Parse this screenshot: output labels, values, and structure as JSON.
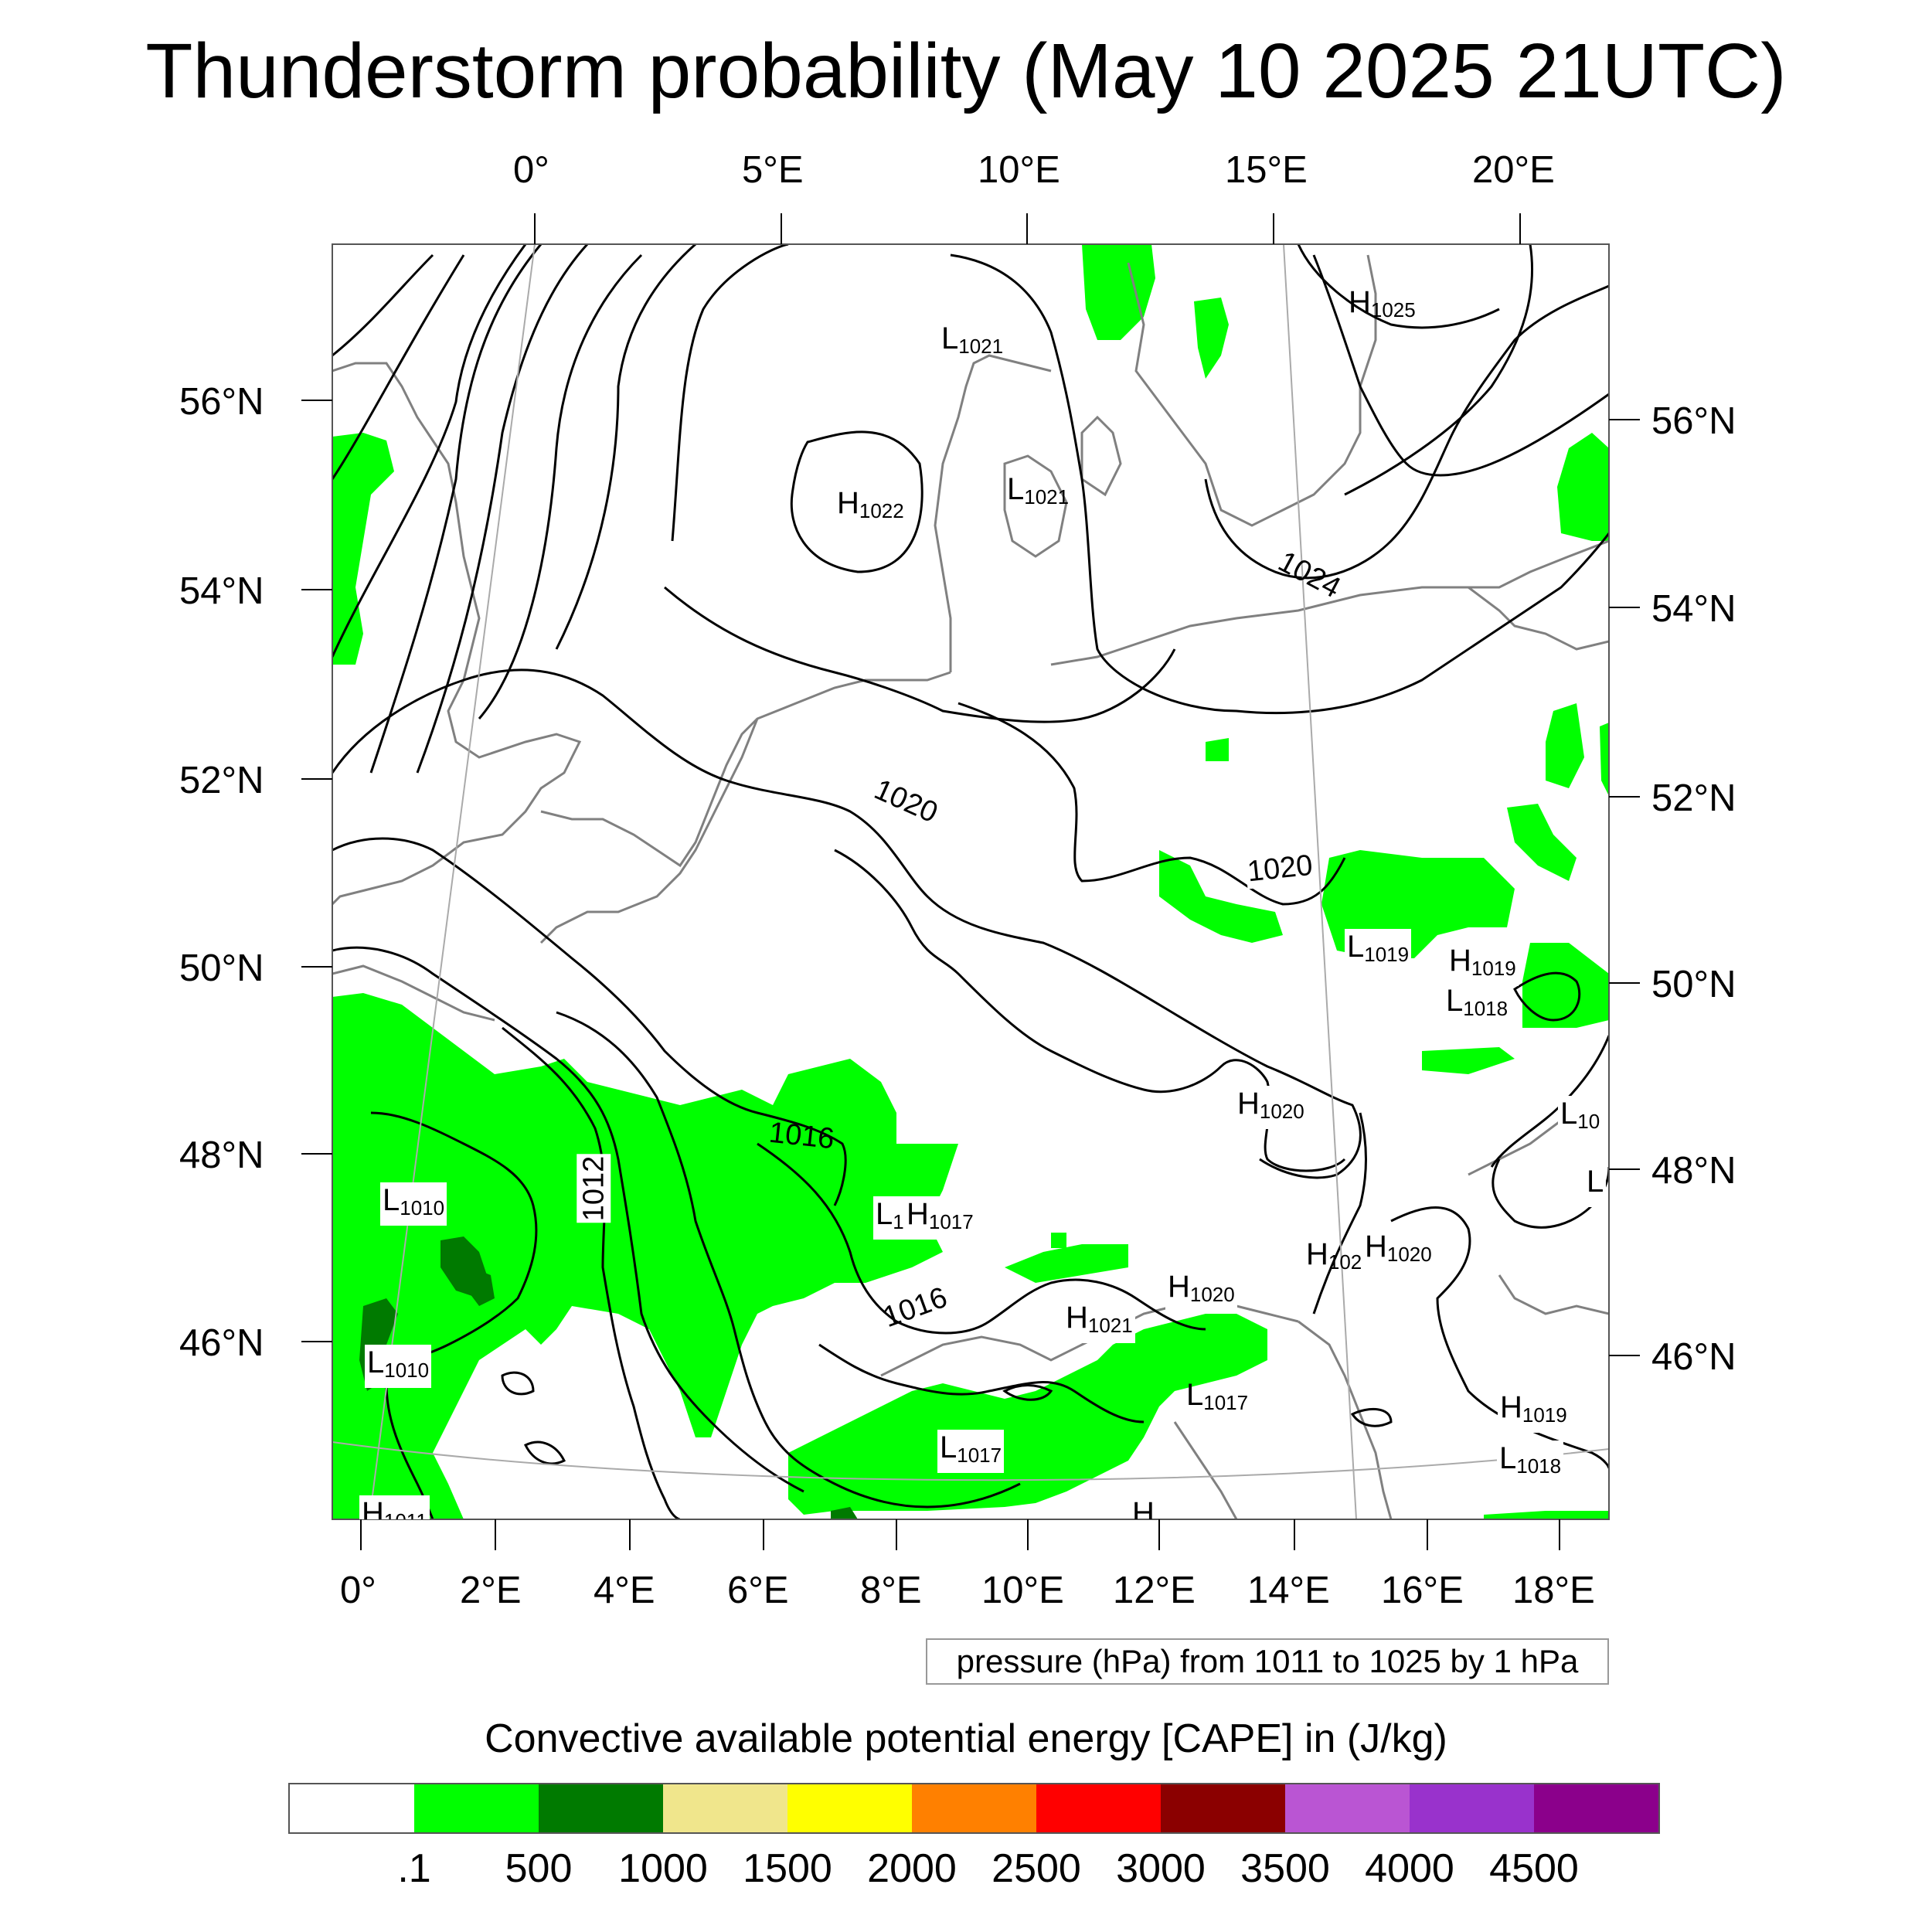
{
  "title": "Thunderstorm probability (May 10 2025 21UTC)",
  "map": {
    "top_longitude_labels": [
      "0°",
      "5°E",
      "10°E",
      "15°E",
      "20°E"
    ],
    "left_latitude_labels": [
      "56°N",
      "54°N",
      "52°N",
      "50°N",
      "48°N",
      "46°N"
    ],
    "right_latitude_labels": [
      "56°N",
      "54°N",
      "52°N",
      "50°N",
      "48°N",
      "46°N"
    ],
    "bottom_longitude_labels": [
      "0°",
      "2°E",
      "4°E",
      "6°E",
      "8°E",
      "10°E",
      "12°E",
      "14°E",
      "16°E",
      "18°E"
    ],
    "pressure_centers": [
      {
        "type": "L",
        "value": "1021"
      },
      {
        "type": "H",
        "value": "1025"
      },
      {
        "type": "H",
        "value": "1022"
      },
      {
        "type": "L",
        "value": "1021"
      },
      {
        "type": "L",
        "value": "1019"
      },
      {
        "type": "H",
        "value": "1019"
      },
      {
        "type": "L",
        "value": "1018"
      },
      {
        "type": "H",
        "value": "1020"
      },
      {
        "type": "L",
        "value": "10"
      },
      {
        "type": "L",
        "value": ""
      },
      {
        "type": "L",
        "value": "1010"
      },
      {
        "type": "L",
        "value": "1010"
      },
      {
        "type": "L",
        "value": "1"
      },
      {
        "type": "H",
        "value": "1017"
      },
      {
        "type": "H",
        "value": "1020"
      },
      {
        "type": "H",
        "value": "1020"
      },
      {
        "type": "H",
        "value": "1020"
      },
      {
        "type": "H",
        "value": "1021"
      },
      {
        "type": "L",
        "value": "1017"
      },
      {
        "type": "L",
        "value": "1017"
      },
      {
        "type": "H",
        "value": "1019"
      },
      {
        "type": "L",
        "value": "1018"
      },
      {
        "type": "H",
        "value": "1011"
      },
      {
        "type": "H",
        "value": ""
      }
    ],
    "isobar_labels": [
      "1024",
      "1020",
      "1020",
      "1016",
      "1012",
      "1016"
    ],
    "info_box": "pressure (hPa) from 1011 to 1025 by 1 hPa"
  },
  "colorbar": {
    "title": "Convective available potential energy [CAPE] in (J/kg)",
    "colors": [
      "#ffffff",
      "#00ff00",
      "#007a00",
      "#f0e68c",
      "#ffff00",
      "#ff8000",
      "#ff0000",
      "#8b0000",
      "#ba55d3",
      "#9932cc",
      "#8b008b"
    ],
    "labels": [
      ".1",
      "500",
      "1000",
      "1500",
      "2000",
      "2500",
      "3000",
      "3500",
      "4000",
      "4500"
    ]
  },
  "style": {
    "cape_green": "#00ff00",
    "cape_dark_green": "#007a00",
    "coastline_color": "#808080",
    "isobar_color": "#000000"
  }
}
